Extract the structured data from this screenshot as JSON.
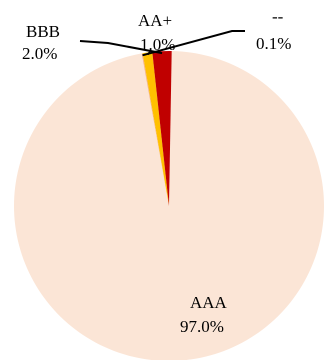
{
  "chart_data": {
    "type": "pie",
    "title": "",
    "slices": [
      {
        "label": "AAA",
        "value": 97.0,
        "value_label": "97.0%",
        "color": "#fbe5d6"
      },
      {
        "label": "--",
        "value": 0.1,
        "value_label": "0.1%",
        "color": "#f4b183"
      },
      {
        "label": "AA+",
        "value": 1.0,
        "value_label": "1.0%",
        "color": "#ffc000"
      },
      {
        "label": "BBB",
        "value": 2.0,
        "value_label": "2.0%",
        "color": "#c00000"
      }
    ]
  }
}
